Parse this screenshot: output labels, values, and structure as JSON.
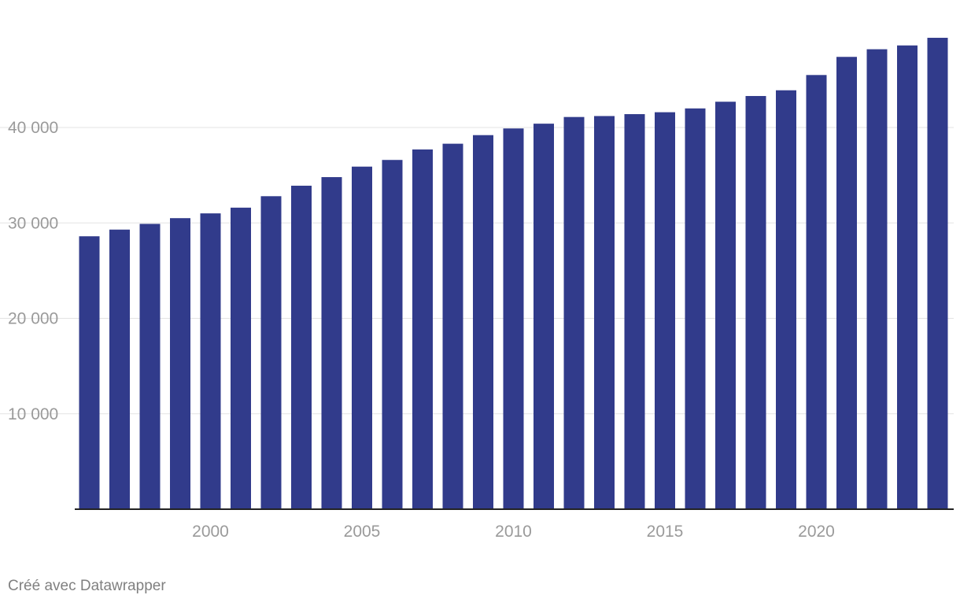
{
  "chart_data": {
    "type": "bar",
    "x": [
      1996,
      1997,
      1998,
      1999,
      2000,
      2001,
      2002,
      2003,
      2004,
      2005,
      2006,
      2007,
      2008,
      2009,
      2010,
      2011,
      2012,
      2013,
      2014,
      2015,
      2016,
      2017,
      2018,
      2019,
      2020,
      2021,
      2022,
      2023,
      2024
    ],
    "values": [
      28600,
      29300,
      29900,
      30500,
      31000,
      31600,
      32800,
      33900,
      34800,
      35900,
      36600,
      37700,
      38300,
      39200,
      39900,
      40400,
      41100,
      41200,
      41400,
      41600,
      42000,
      42700,
      43300,
      43900,
      45500,
      47400,
      48200,
      48600,
      49400
    ],
    "title": "",
    "xlabel": "",
    "ylabel": "",
    "ylim": [
      0,
      50000
    ],
    "y_ticks": [
      {
        "value": 10000,
        "label": "10 000"
      },
      {
        "value": 20000,
        "label": "20 000"
      },
      {
        "value": 30000,
        "label": "30 000"
      },
      {
        "value": 40000,
        "label": "40 000"
      }
    ],
    "x_ticks": [
      {
        "value": 2000,
        "label": "2000"
      },
      {
        "value": 2005,
        "label": "2005"
      },
      {
        "value": 2010,
        "label": "2010"
      },
      {
        "value": 2015,
        "label": "2015"
      },
      {
        "value": 2020,
        "label": "2020"
      }
    ],
    "grid": true,
    "legend": "none",
    "bar_color": "#313b8b",
    "gridline_color": "#e3e3e3",
    "tick_label_color": "#9a9a9a",
    "baseline_color": "#222222"
  },
  "credit": "Créé avec Datawrapper"
}
